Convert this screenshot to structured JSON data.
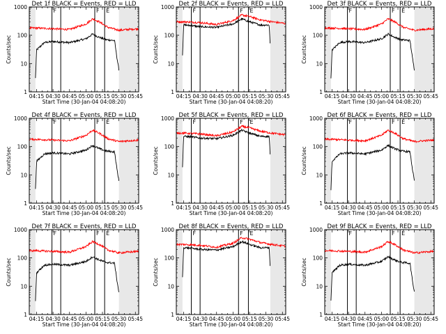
{
  "chart_data": {
    "type": "line",
    "y_scale": "log",
    "ylim": [
      1,
      1000
    ],
    "y_ticks": [
      1,
      10,
      100,
      1000
    ],
    "y_tick_labels": [
      "1",
      "10",
      "100",
      "1000"
    ],
    "ylabel": "Counts/sec",
    "x_ticks": [
      "04:15",
      "04:30",
      "04:45",
      "05:00",
      "05:15",
      "05:30",
      "05:45"
    ],
    "xlabel": "Start Time (30-Jan-04 04:08:20)",
    "xlim": [
      "04:08:20",
      "05:48"
    ],
    "colors": {
      "Events": "#000000",
      "LLD": "#ff0000"
    },
    "marker_labels": [
      "F",
      "E"
    ],
    "panels": [
      {
        "title": "Det 1f BLACK = Events, RED = LLD",
        "gaps": [
          [
            "04:08:20",
            "04:14"
          ],
          [
            "05:30",
            "05:48"
          ]
        ],
        "markers": [
          {
            "t": "04:29",
            "label": "F"
          },
          {
            "t": "04:37",
            "label": ""
          },
          {
            "t": "05:08",
            "label": "F"
          },
          {
            "t": "05:17",
            "label": "E"
          }
        ],
        "series": [
          {
            "name": "Events",
            "times": [
              "04:14",
              "04:15",
              "04:22",
              "04:30",
              "04:45",
              "05:00",
              "05:06",
              "05:12",
              "05:18",
              "05:26",
              "05:28",
              "05:30"
            ],
            "values": [
              3,
              30,
              55,
              60,
              55,
              75,
              110,
              85,
              70,
              65,
              18,
              6
            ]
          },
          {
            "name": "LLD",
            "times": [
              "04:08:20",
              "04:15",
              "04:30",
              "04:45",
              "05:00",
              "05:06",
              "05:12",
              "05:20",
              "05:30",
              "05:38",
              "05:48"
            ],
            "values": [
              180,
              180,
              170,
              160,
              250,
              380,
              300,
              190,
              150,
              160,
              170
            ]
          }
        ]
      },
      {
        "title": "Det 2f BLACK = Events, RED = LLD",
        "gaps": [
          [
            "04:08:20",
            "04:14"
          ],
          [
            "05:34",
            "05:48"
          ]
        ],
        "markers": [
          {
            "t": "04:22",
            "label": "F"
          },
          {
            "t": "04:30",
            "label": ""
          },
          {
            "t": "05:05",
            "label": "F"
          },
          {
            "t": "05:14",
            "label": "E"
          }
        ],
        "series": [
          {
            "name": "Events",
            "times": [
              "04:14",
              "04:15",
              "04:22",
              "04:30",
              "04:45",
              "05:00",
              "05:08",
              "05:15",
              "05:25",
              "05:33",
              "05:34"
            ],
            "values": [
              20,
              230,
              220,
              200,
              190,
              250,
              380,
              300,
              230,
              230,
              35
            ]
          },
          {
            "name": "LLD",
            "times": [
              "04:08:20",
              "04:15",
              "04:30",
              "04:45",
              "05:00",
              "05:08",
              "05:15",
              "05:25",
              "05:35",
              "05:48"
            ],
            "values": [
              300,
              300,
              280,
              240,
              330,
              520,
              460,
              350,
              300,
              260
            ]
          }
        ]
      },
      {
        "title": "Det 3f BLACK = Events, RED = LLD",
        "gaps": [
          [
            "04:08:20",
            "04:14"
          ],
          [
            "05:30",
            "05:48"
          ]
        ],
        "markers": [
          {
            "t": "04:29",
            "label": "F"
          },
          {
            "t": "04:37",
            "label": ""
          },
          {
            "t": "05:08",
            "label": "F"
          },
          {
            "t": "05:17",
            "label": "E"
          }
        ],
        "series": [
          {
            "name": "Events",
            "times": [
              "04:14",
              "04:15",
              "04:22",
              "04:30",
              "04:45",
              "05:00",
              "05:06",
              "05:12",
              "05:18",
              "05:26",
              "05:28",
              "05:30"
            ],
            "values": [
              3,
              30,
              55,
              60,
              55,
              75,
              110,
              85,
              70,
              65,
              18,
              6
            ]
          },
          {
            "name": "LLD",
            "times": [
              "04:08:20",
              "04:15",
              "04:30",
              "04:45",
              "05:00",
              "05:06",
              "05:12",
              "05:20",
              "05:30",
              "05:38",
              "05:48"
            ],
            "values": [
              180,
              180,
              170,
              160,
              250,
              380,
              300,
              190,
              150,
              160,
              170
            ]
          }
        ]
      },
      {
        "title": "Det 4f BLACK = Events, RED = LLD",
        "gaps": [
          [
            "04:08:20",
            "04:14"
          ],
          [
            "05:30",
            "05:48"
          ]
        ],
        "markers": [
          {
            "t": "04:29",
            "label": "F"
          },
          {
            "t": "04:37",
            "label": ""
          },
          {
            "t": "05:08",
            "label": "F"
          },
          {
            "t": "05:17",
            "label": "E"
          }
        ],
        "series": [
          {
            "name": "Events",
            "times": [
              "04:14",
              "04:15",
              "04:22",
              "04:30",
              "04:45",
              "05:00",
              "05:06",
              "05:12",
              "05:18",
              "05:26",
              "05:28",
              "05:30"
            ],
            "values": [
              3,
              30,
              55,
              60,
              55,
              75,
              110,
              85,
              70,
              65,
              18,
              6
            ]
          },
          {
            "name": "LLD",
            "times": [
              "04:08:20",
              "04:15",
              "04:30",
              "04:45",
              "05:00",
              "05:06",
              "05:12",
              "05:20",
              "05:30",
              "05:38",
              "05:48"
            ],
            "values": [
              180,
              180,
              170,
              160,
              250,
              380,
              300,
              190,
              150,
              160,
              170
            ]
          }
        ]
      },
      {
        "title": "Det 5f BLACK = Events, RED = LLD",
        "gaps": [
          [
            "04:08:20",
            "04:14"
          ],
          [
            "05:34",
            "05:48"
          ]
        ],
        "markers": [
          {
            "t": "04:22",
            "label": "F"
          },
          {
            "t": "04:30",
            "label": ""
          },
          {
            "t": "05:05",
            "label": "F"
          },
          {
            "t": "05:14",
            "label": "E"
          }
        ],
        "series": [
          {
            "name": "Events",
            "times": [
              "04:14",
              "04:15",
              "04:22",
              "04:30",
              "04:45",
              "05:00",
              "05:08",
              "05:15",
              "05:25",
              "05:33",
              "05:34"
            ],
            "values": [
              20,
              230,
              220,
              200,
              190,
              250,
              380,
              300,
              230,
              230,
              35
            ]
          },
          {
            "name": "LLD",
            "times": [
              "04:08:20",
              "04:15",
              "04:30",
              "04:45",
              "05:00",
              "05:08",
              "05:15",
              "05:25",
              "05:35",
              "05:48"
            ],
            "values": [
              300,
              300,
              280,
              240,
              330,
              520,
              460,
              350,
              300,
              260
            ]
          }
        ]
      },
      {
        "title": "Det 6f BLACK = Events, RED = LLD",
        "gaps": [
          [
            "04:08:20",
            "04:14"
          ],
          [
            "05:30",
            "05:48"
          ]
        ],
        "markers": [
          {
            "t": "04:29",
            "label": "F"
          },
          {
            "t": "04:37",
            "label": ""
          },
          {
            "t": "05:08",
            "label": "F"
          },
          {
            "t": "05:17",
            "label": "E"
          }
        ],
        "series": [
          {
            "name": "Events",
            "times": [
              "04:14",
              "04:15",
              "04:22",
              "04:30",
              "04:45",
              "05:00",
              "05:06",
              "05:12",
              "05:18",
              "05:26",
              "05:28",
              "05:30"
            ],
            "values": [
              3,
              30,
              55,
              60,
              55,
              75,
              110,
              85,
              70,
              65,
              18,
              6
            ]
          },
          {
            "name": "LLD",
            "times": [
              "04:08:20",
              "04:15",
              "04:30",
              "04:45",
              "05:00",
              "05:06",
              "05:12",
              "05:20",
              "05:30",
              "05:38",
              "05:48"
            ],
            "values": [
              180,
              180,
              170,
              160,
              250,
              380,
              300,
              190,
              150,
              160,
              170
            ]
          }
        ]
      },
      {
        "title": "Det 7f BLACK = Events, RED = LLD",
        "gaps": [
          [
            "04:08:20",
            "04:14"
          ],
          [
            "05:30",
            "05:48"
          ]
        ],
        "markers": [
          {
            "t": "04:29",
            "label": "F"
          },
          {
            "t": "04:37",
            "label": ""
          },
          {
            "t": "05:08",
            "label": "F"
          },
          {
            "t": "05:17",
            "label": "E"
          }
        ],
        "series": [
          {
            "name": "Events",
            "times": [
              "04:14",
              "04:15",
              "04:22",
              "04:30",
              "04:45",
              "05:00",
              "05:06",
              "05:12",
              "05:18",
              "05:26",
              "05:28",
              "05:30"
            ],
            "values": [
              3,
              30,
              55,
              60,
              55,
              75,
              110,
              85,
              70,
              65,
              18,
              6
            ]
          },
          {
            "name": "LLD",
            "times": [
              "04:08:20",
              "04:15",
              "04:30",
              "04:45",
              "05:00",
              "05:06",
              "05:12",
              "05:20",
              "05:30",
              "05:38",
              "05:48"
            ],
            "values": [
              180,
              180,
              170,
              160,
              250,
              380,
              300,
              190,
              150,
              160,
              170
            ]
          }
        ]
      },
      {
        "title": "Det 8f BLACK = Events, RED = LLD",
        "gaps": [
          [
            "04:08:20",
            "04:14"
          ],
          [
            "05:34",
            "05:48"
          ]
        ],
        "markers": [
          {
            "t": "04:22",
            "label": "F"
          },
          {
            "t": "04:30",
            "label": ""
          },
          {
            "t": "05:05",
            "label": "F"
          },
          {
            "t": "05:14",
            "label": "E"
          }
        ],
        "series": [
          {
            "name": "Events",
            "times": [
              "04:14",
              "04:15",
              "04:22",
              "04:30",
              "04:45",
              "05:00",
              "05:08",
              "05:15",
              "05:25",
              "05:33",
              "05:34"
            ],
            "values": [
              20,
              230,
              220,
              200,
              190,
              250,
              380,
              300,
              230,
              230,
              35
            ]
          },
          {
            "name": "LLD",
            "times": [
              "04:08:20",
              "04:15",
              "04:30",
              "04:45",
              "05:00",
              "05:08",
              "05:15",
              "05:25",
              "05:35",
              "05:48"
            ],
            "values": [
              300,
              300,
              280,
              240,
              330,
              520,
              460,
              350,
              300,
              260
            ]
          }
        ]
      },
      {
        "title": "Det 9f BLACK = Events, RED = LLD",
        "gaps": [
          [
            "04:08:20",
            "04:14"
          ],
          [
            "05:30",
            "05:48"
          ]
        ],
        "markers": [
          {
            "t": "04:29",
            "label": "F"
          },
          {
            "t": "04:37",
            "label": ""
          },
          {
            "t": "05:08",
            "label": "F"
          },
          {
            "t": "05:17",
            "label": "E"
          }
        ],
        "series": [
          {
            "name": "Events",
            "times": [
              "04:14",
              "04:15",
              "04:22",
              "04:30",
              "04:45",
              "05:00",
              "05:06",
              "05:12",
              "05:18",
              "05:26",
              "05:28",
              "05:30"
            ],
            "values": [
              3,
              30,
              55,
              60,
              55,
              75,
              110,
              85,
              70,
              65,
              18,
              6
            ]
          },
          {
            "name": "LLD",
            "times": [
              "04:08:20",
              "04:15",
              "04:30",
              "04:45",
              "05:00",
              "05:06",
              "05:12",
              "05:20",
              "05:30",
              "05:38",
              "05:48"
            ],
            "values": [
              180,
              180,
              170,
              160,
              250,
              380,
              300,
              190,
              150,
              160,
              170
            ]
          }
        ]
      }
    ]
  }
}
